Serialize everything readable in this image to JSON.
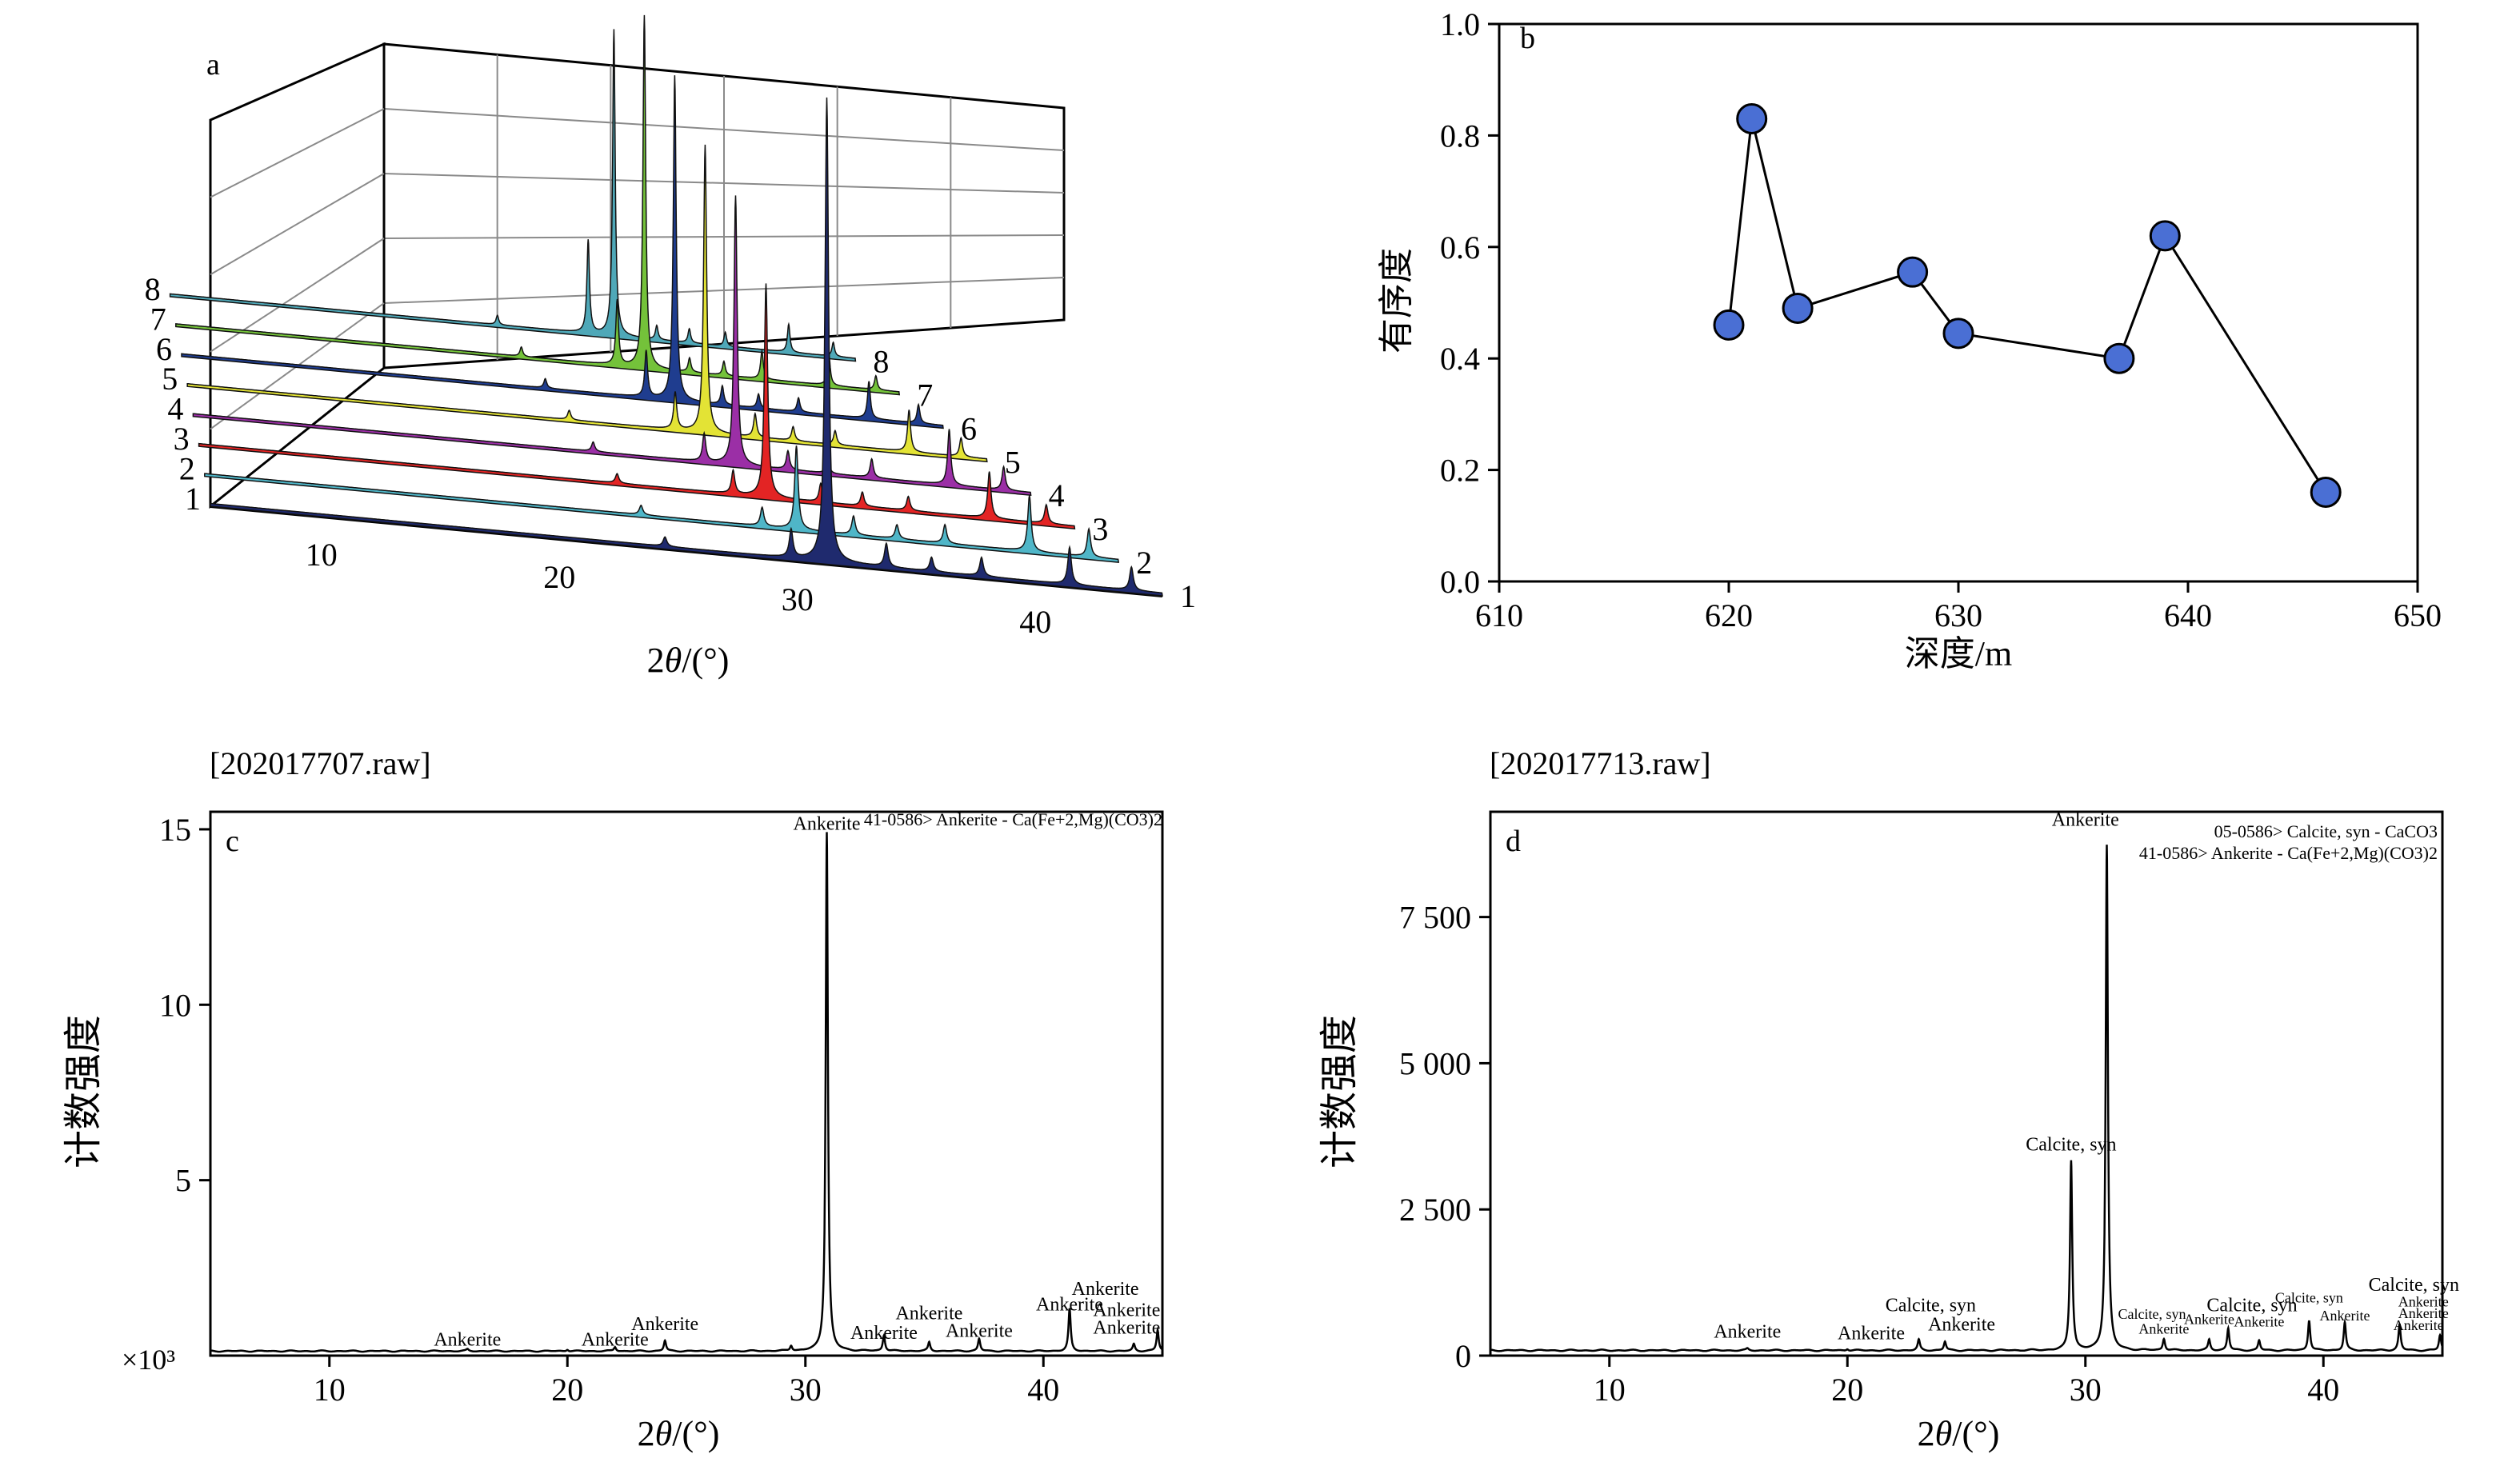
{
  "chart_data": [
    {
      "id": "a",
      "panel_label": "a",
      "type": "line",
      "xlabel": "2θ/(°)",
      "xticks": [
        10,
        20,
        30,
        40
      ],
      "xlim": [
        5,
        45
      ],
      "series": [
        {
          "name": "1",
          "color": "#1f2a6e"
        },
        {
          "name": "2",
          "color": "#4fb6c8"
        },
        {
          "name": "3",
          "color": "#e32424"
        },
        {
          "name": "4",
          "color": "#9b2fa6"
        },
        {
          "name": "5",
          "color": "#e3e335"
        },
        {
          "name": "6",
          "color": "#1f3d8f"
        },
        {
          "name": "7",
          "color": "#74c23a"
        },
        {
          "name": "8",
          "color": "#4fa8b8"
        }
      ],
      "peaks_x": [
        {
          "x": 30.9,
          "h": [
            1.0,
            0.18,
            0.46,
            0.58,
            0.62,
            0.7,
            0.76,
            0.66
          ]
        },
        {
          "x": 29.4,
          "h": [
            0.06,
            0.04,
            0.05,
            0.06,
            0.08,
            0.1,
            0.14,
            0.2
          ]
        },
        {
          "x": 41.1,
          "h": [
            0.08,
            0.12,
            0.1,
            0.12,
            0.09,
            0.08,
            0.07,
            0.06
          ]
        },
        {
          "x": 33.4,
          "h": [
            0.05,
            0.04,
            0.04,
            0.04,
            0.05,
            0.04,
            0.03,
            0.03
          ]
        },
        {
          "x": 37.4,
          "h": [
            0.04,
            0.04,
            0.03,
            0.04,
            0.03,
            0.03,
            0.06,
            0.03
          ]
        },
        {
          "x": 43.7,
          "h": [
            0.05,
            0.06,
            0.04,
            0.05,
            0.04,
            0.04,
            0.03,
            0.03
          ]
        },
        {
          "x": 35.3,
          "h": [
            0.03,
            0.03,
            0.03,
            0.03,
            0.03,
            0.03,
            0.03,
            0.03
          ]
        },
        {
          "x": 24.1,
          "h": [
            0.02,
            0.02,
            0.02,
            0.02,
            0.02,
            0.02,
            0.02,
            0.02
          ]
        }
      ]
    },
    {
      "id": "b",
      "panel_label": "b",
      "type": "scatter",
      "xlabel": "深度/m",
      "ylabel": "有序度",
      "xlim": [
        610,
        650
      ],
      "ylim": [
        0.0,
        1.0
      ],
      "xticks": [
        "610",
        "620",
        "630",
        "640",
        "650"
      ],
      "yticks": [
        "0.0",
        "0.2",
        "0.4",
        "0.6",
        "0.8",
        "1.0"
      ],
      "x": [
        620,
        621,
        623,
        628,
        630,
        637,
        639,
        646
      ],
      "y": [
        0.46,
        0.83,
        0.49,
        0.555,
        0.445,
        0.4,
        0.62,
        0.16
      ],
      "color": "#4a6fd4"
    },
    {
      "id": "c",
      "panel_label": "c",
      "type": "line",
      "file": "[202017707.raw]",
      "xlabel": "2θ/(°)",
      "ylabel": "计数强度",
      "y_multiplier": "×10³",
      "xlim": [
        5,
        45
      ],
      "ylim": [
        0,
        15.5
      ],
      "xticks": [
        "10",
        "20",
        "30",
        "40"
      ],
      "yticks": [
        "5",
        "10",
        "15"
      ],
      "baseline": 0.13,
      "peaks": [
        {
          "x": 15.8,
          "y": 0.05
        },
        {
          "x": 20.0,
          "y": 0.05
        },
        {
          "x": 22.0,
          "y": 0.12
        },
        {
          "x": 24.1,
          "y": 0.3
        },
        {
          "x": 29.4,
          "y": 0.15
        },
        {
          "x": 30.9,
          "y": 14.8
        },
        {
          "x": 33.3,
          "y": 0.45
        },
        {
          "x": 35.2,
          "y": 0.25
        },
        {
          "x": 37.3,
          "y": 0.35
        },
        {
          "x": 41.1,
          "y": 1.2
        },
        {
          "x": 43.8,
          "y": 0.2
        },
        {
          "x": 44.8,
          "y": 0.6
        }
      ],
      "reference": "41-0586> Ankerite - Ca(Fe+2,Mg)(CO3)2",
      "annotations": [
        {
          "text": "Ankerite",
          "x": 30.9,
          "y": 14.8
        },
        {
          "text": "Ankerite",
          "x": 15.8,
          "y": 0.1
        },
        {
          "text": "Ankerite",
          "x": 22.0,
          "y": 0.1
        },
        {
          "text": "Ankerite",
          "x": 24.1,
          "y": 0.55
        },
        {
          "text": "Ankerite",
          "x": 33.3,
          "y": 0.3
        },
        {
          "text": "Ankerite",
          "x": 35.2,
          "y": 0.85
        },
        {
          "text": "Ankerite",
          "x": 37.3,
          "y": 0.35
        },
        {
          "text": "Ankerite",
          "x": 41.1,
          "y": 1.1
        },
        {
          "text": "Ankerite",
          "x": 42.6,
          "y": 1.55
        },
        {
          "text": "Ankerite",
          "x": 43.5,
          "y": 0.95
        },
        {
          "text": "Ankerite",
          "x": 43.5,
          "y": 0.45
        }
      ]
    },
    {
      "id": "d",
      "panel_label": "d",
      "type": "line",
      "file": "[202017713.raw]",
      "xlabel": "2θ/(°)",
      "ylabel": "计数强度",
      "xlim": [
        5,
        45
      ],
      "ylim": [
        0,
        9300
      ],
      "xticks": [
        "10",
        "20",
        "30",
        "40"
      ],
      "yticks": [
        "0",
        "2 500",
        "5 000",
        "7 500"
      ],
      "ytick_values": [
        0,
        2500,
        5000,
        7500
      ],
      "baseline": 90,
      "peaks": [
        {
          "x": 15.8,
          "y": 30
        },
        {
          "x": 20.0,
          "y": 30
        },
        {
          "x": 23.0,
          "y": 180
        },
        {
          "x": 24.1,
          "y": 150
        },
        {
          "x": 29.4,
          "y": 3250
        },
        {
          "x": 30.9,
          "y": 8650
        },
        {
          "x": 33.3,
          "y": 200
        },
        {
          "x": 35.2,
          "y": 180
        },
        {
          "x": 36.0,
          "y": 380
        },
        {
          "x": 37.3,
          "y": 170
        },
        {
          "x": 39.4,
          "y": 520
        },
        {
          "x": 40.9,
          "y": 480
        },
        {
          "x": 43.2,
          "y": 450
        },
        {
          "x": 44.9,
          "y": 260
        }
      ],
      "references": [
        "05-0586> Calcite, syn - CaCO3",
        "41-0586> Ankerite - Ca(Fe+2,Mg)(CO3)2"
      ],
      "annotations": [
        {
          "text": "Ankerite",
          "x": 30.0,
          "y": 8950,
          "size": "l"
        },
        {
          "text": "Calcite, syn",
          "x": 29.4,
          "y": 3400,
          "size": "l"
        },
        {
          "text": "Ankerite",
          "x": 15.8,
          "y": 200,
          "size": "l"
        },
        {
          "text": "Ankerite",
          "x": 21.0,
          "y": 170,
          "size": "l"
        },
        {
          "text": "Calcite, syn",
          "x": 23.5,
          "y": 650,
          "size": "l"
        },
        {
          "text": "Ankerite",
          "x": 24.8,
          "y": 320,
          "size": "l"
        },
        {
          "text": "Calcite, syn",
          "x": 32.8,
          "y": 520,
          "size": "s"
        },
        {
          "text": "Ankerite",
          "x": 33.3,
          "y": 270,
          "size": "s"
        },
        {
          "text": "Calcite, syn",
          "x": 37.0,
          "y": 650,
          "size": "l"
        },
        {
          "text": "Ankerite",
          "x": 35.2,
          "y": 430,
          "size": "s"
        },
        {
          "text": "Ankerite",
          "x": 37.3,
          "y": 390,
          "size": "s"
        },
        {
          "text": "Calcite, syn",
          "x": 39.4,
          "y": 800,
          "size": "s"
        },
        {
          "text": "Ankerite",
          "x": 40.9,
          "y": 490,
          "size": "s"
        },
        {
          "text": "Calcite, syn",
          "x": 43.8,
          "y": 1000,
          "size": "l"
        },
        {
          "text": "Ankerite",
          "x": 44.2,
          "y": 730,
          "size": "s"
        },
        {
          "text": "Ankerite",
          "x": 44.2,
          "y": 530,
          "size": "s"
        },
        {
          "text": "Ankerite",
          "x": 44.0,
          "y": 330,
          "size": "s"
        }
      ]
    }
  ]
}
